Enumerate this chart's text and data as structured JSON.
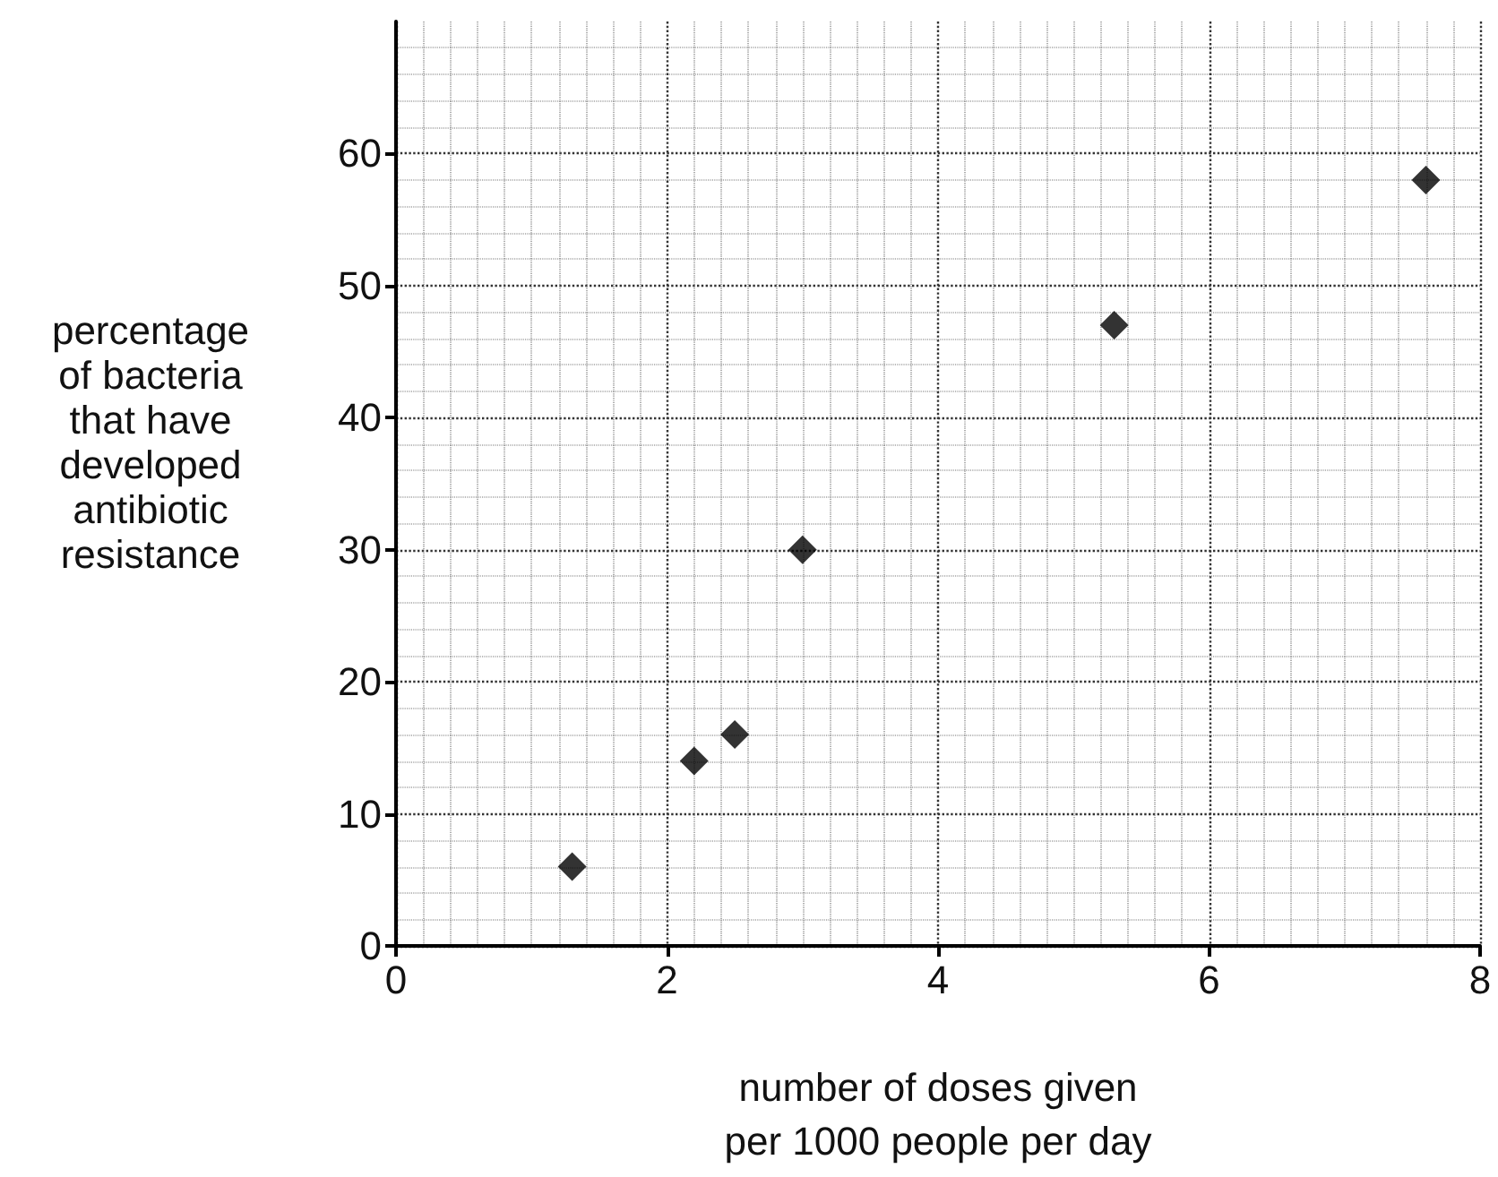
{
  "chart_data": {
    "type": "scatter",
    "xlabel": "number of doses given\nper 1000 people per day",
    "ylabel": "percentage\nof bacteria\nthat have\ndeveloped\nantibiotic\nresistance",
    "x": [
      1.3,
      2.2,
      2.5,
      3,
      5.3,
      7.6
    ],
    "series": [
      {
        "color": "#000000",
        "values": [
          6,
          14,
          16,
          30,
          47,
          58
        ]
      }
    ],
    "xlim": [
      0,
      8
    ],
    "xticks": [
      0,
      2,
      4,
      6,
      8
    ],
    "ylim": [
      0,
      70
    ],
    "yticks": [
      0,
      10,
      20,
      30,
      40,
      50,
      60
    ],
    "grid": true,
    "marker": "diamond"
  }
}
